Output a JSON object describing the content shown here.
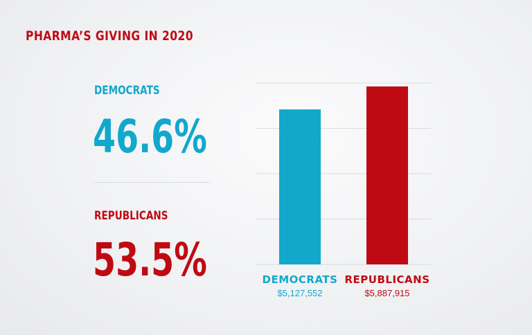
{
  "colors": {
    "democrats": "#11a8cc",
    "republicans": "#bf0a13",
    "title": "#bf0a13",
    "grid": "#d9dbde"
  },
  "title": "PHARMA’S GIVING IN 2020",
  "stats": [
    {
      "label": "DEMOCRATS",
      "value": "46.6%"
    },
    {
      "label": "REPUBLICANS",
      "value": "53.5%"
    }
  ],
  "chart_data": {
    "type": "bar",
    "categories": [
      "DEMOCRATS",
      "REPUBLICANS"
    ],
    "values": [
      5127552,
      5887915
    ],
    "value_labels": [
      "$5,127,552",
      "$5,887,915"
    ],
    "ylim": [
      0,
      6000000
    ],
    "grid": true
  }
}
